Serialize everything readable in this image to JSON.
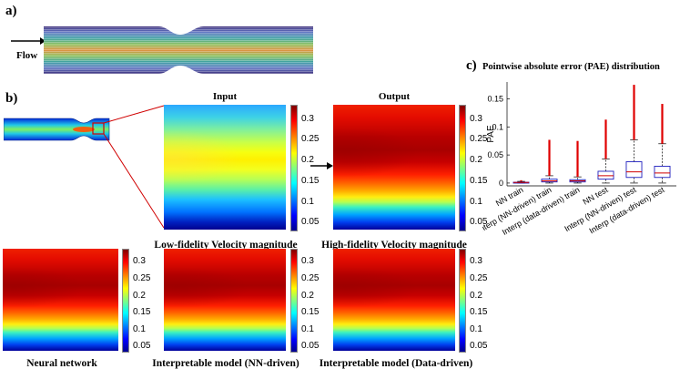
{
  "panel_a": {
    "label": "a)",
    "flow_label": "Flow"
  },
  "panel_b": {
    "label": "b)",
    "input_title": "Input",
    "output_title": "Output",
    "input_caption": "Low-fidelity Velocity magnitude",
    "output_caption": "High-fidelity Velocity magnitude",
    "nn_caption": "Neural network",
    "interp_nn_caption": "Interpretable model (NN-driven)",
    "interp_data_caption": "Interpretable model (Data-driven)",
    "colorbar_ticks": [
      "0.3",
      "0.25",
      "0.2",
      "0.15",
      "0.1",
      "0.05"
    ]
  },
  "panel_c": {
    "label": "c)"
  },
  "chart_data": {
    "type": "box",
    "title": "Pointwise absolute error (PAE) distribution",
    "ylabel": "PAE",
    "ylim": [
      -0.005,
      0.18
    ],
    "yticks": [
      "0",
      "0.05",
      "0.1",
      "0.15"
    ],
    "ytick_values": [
      0,
      0.05,
      0.1,
      0.15
    ],
    "categories": [
      "NN train",
      "Interp (NN-driven) train",
      "Interp (data-driven) train",
      "NN test",
      "Interp (NN-driven) test",
      "Interp (data-driven) test"
    ],
    "boxes": [
      {
        "q1": 0.0005,
        "median": 0.001,
        "q3": 0.0015,
        "whisker_low": 0,
        "whisker_high": 0.003,
        "outlier_max": 0.005
      },
      {
        "q1": 0.002,
        "median": 0.004,
        "q3": 0.007,
        "whisker_low": 0,
        "whisker_high": 0.013,
        "outlier_max": 0.077
      },
      {
        "q1": 0.002,
        "median": 0.004,
        "q3": 0.006,
        "whisker_low": 0,
        "whisker_high": 0.011,
        "outlier_max": 0.075
      },
      {
        "q1": 0.007,
        "median": 0.013,
        "q3": 0.021,
        "whisker_low": 0,
        "whisker_high": 0.043,
        "outlier_max": 0.113
      },
      {
        "q1": 0.01,
        "median": 0.02,
        "q3": 0.038,
        "whisker_low": 0,
        "whisker_high": 0.077,
        "outlier_max": 0.175
      },
      {
        "q1": 0.01,
        "median": 0.018,
        "q3": 0.03,
        "whisker_low": 0,
        "whisker_high": 0.07,
        "outlier_max": 0.141
      }
    ],
    "box_color": "#1f1fbf",
    "median_color": "#d00000",
    "outlier_color": "#e00000"
  }
}
